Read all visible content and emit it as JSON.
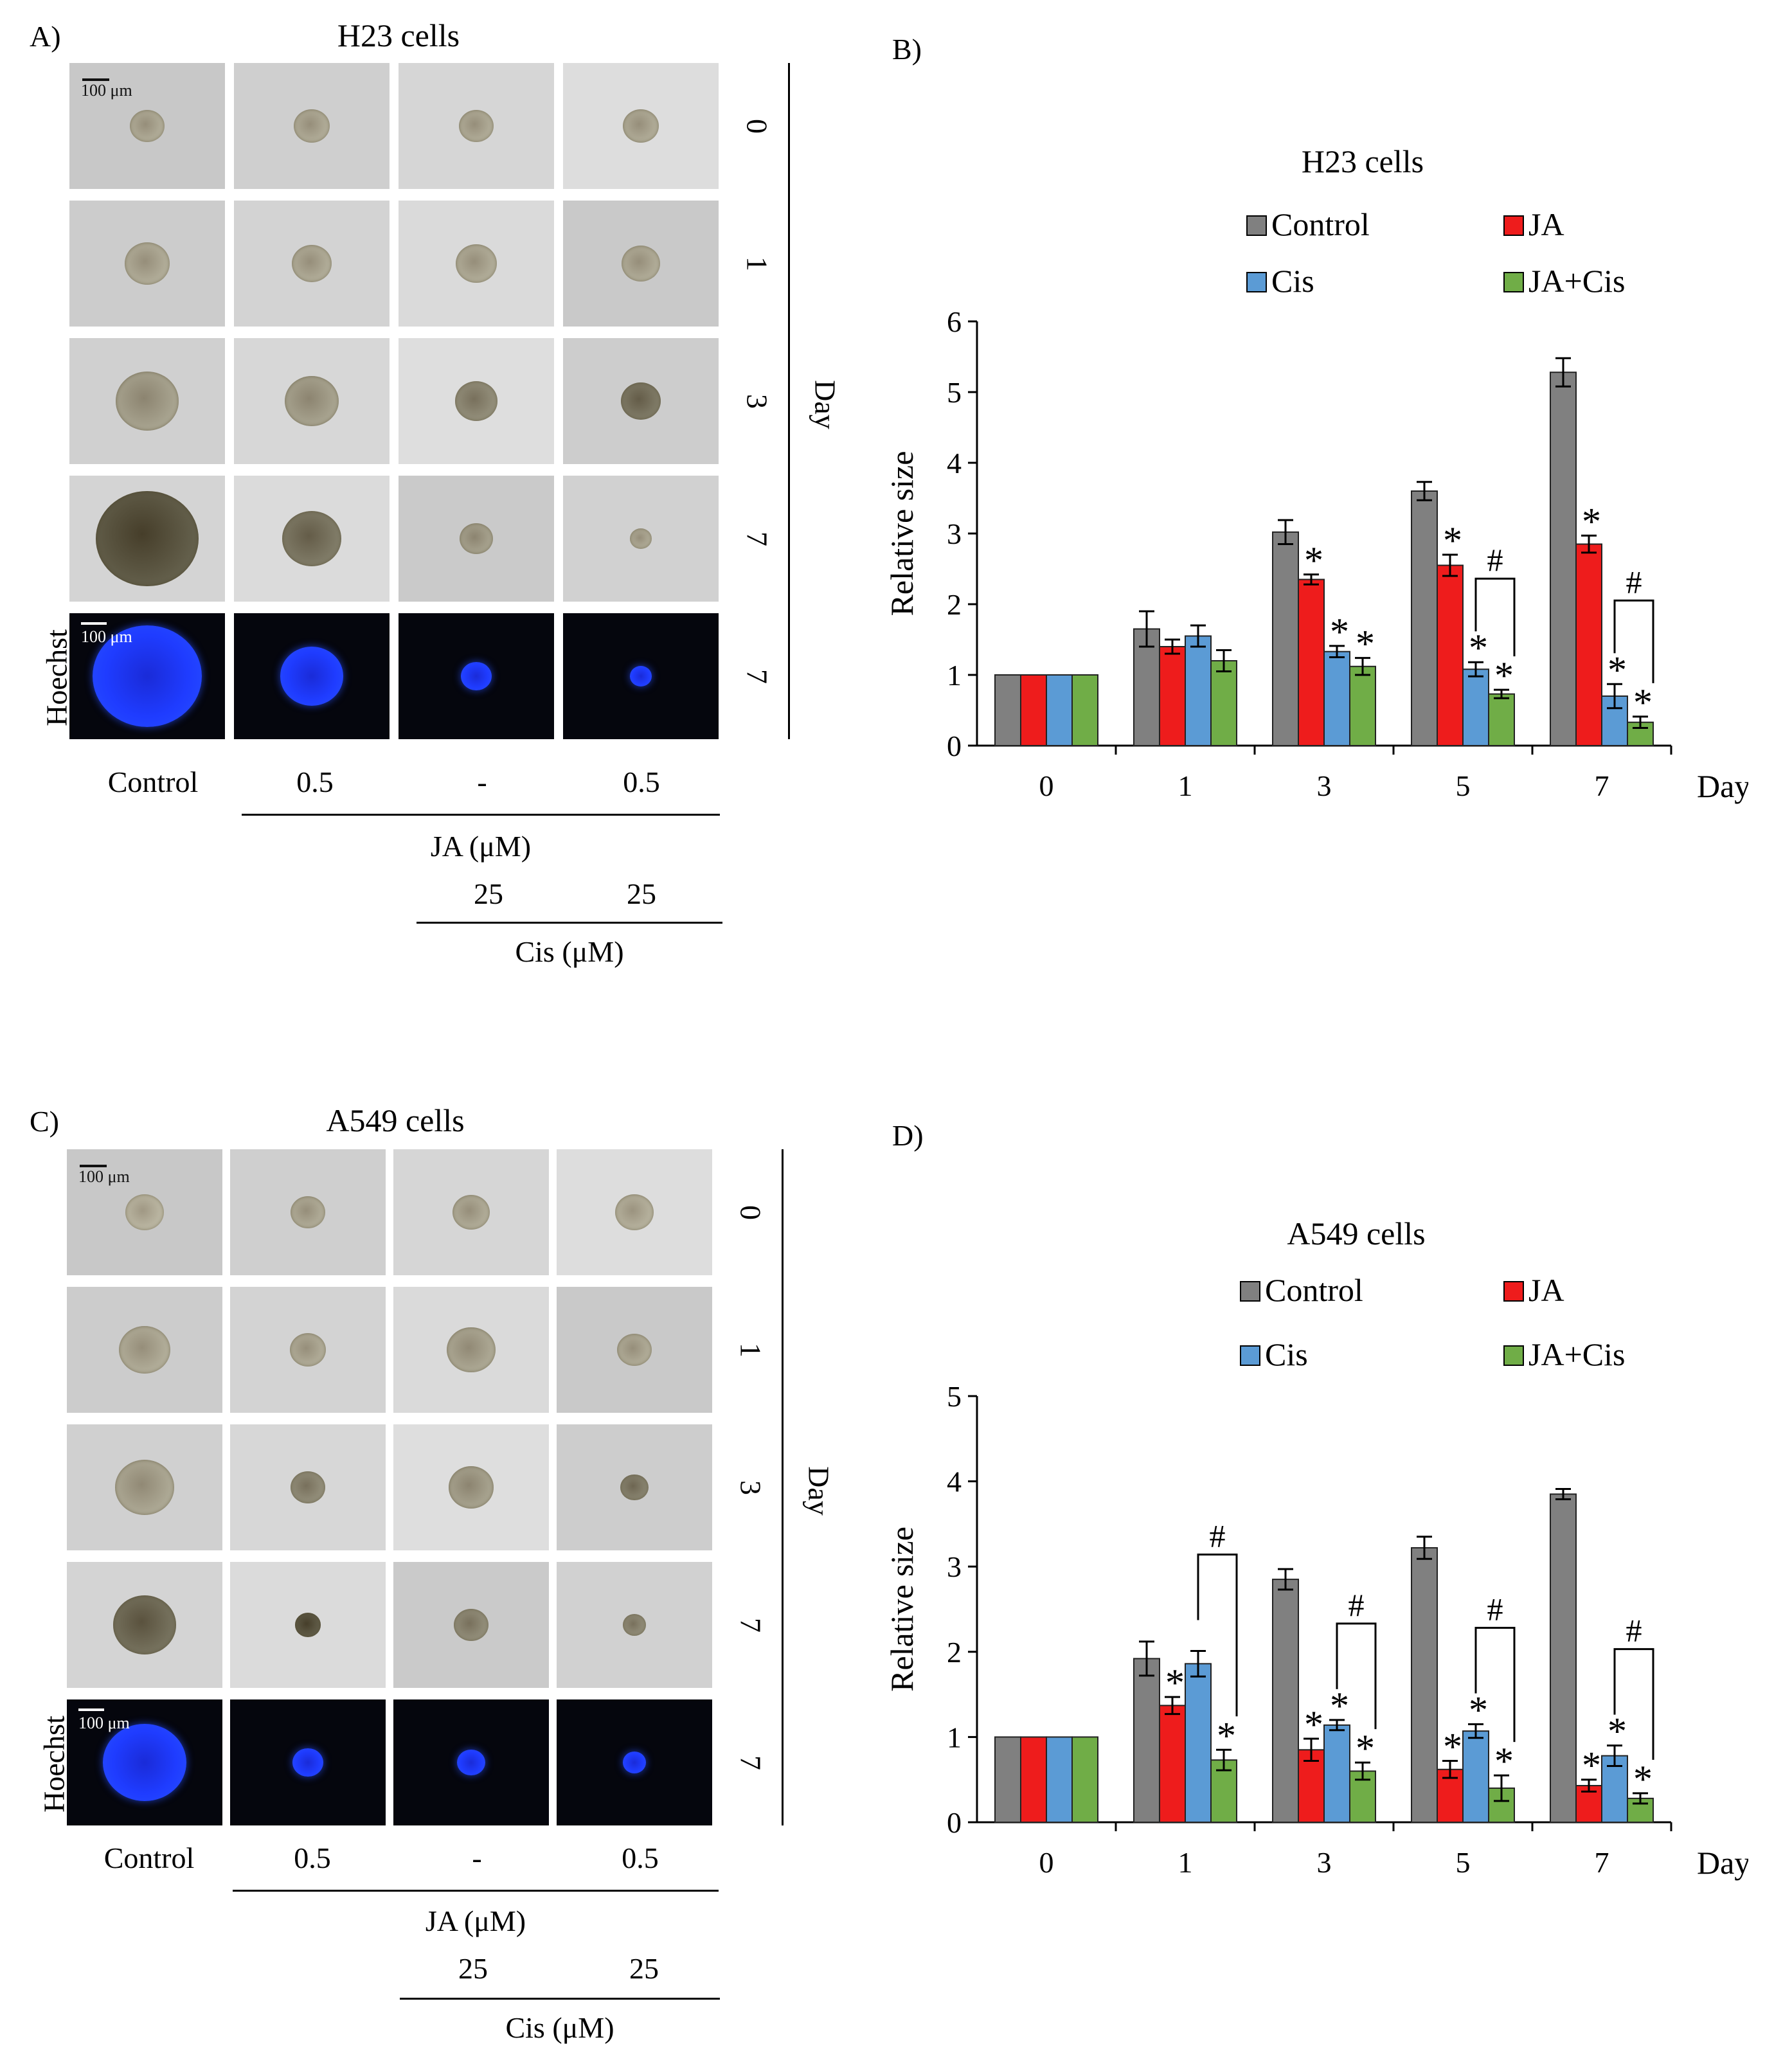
{
  "panels": [
    {
      "id": "A",
      "label": "A)",
      "title": "H23 cells",
      "day_axis_title": "Day",
      "day_labels": [
        "0",
        "1",
        "3",
        "7",
        "7"
      ],
      "hoechst_label": "Hoechst",
      "scale_label": "100 μm",
      "treatments": [
        "Control",
        "0.5",
        "-",
        "0.5"
      ],
      "ja_label": "JA (μM)",
      "cis_values": [
        "25",
        "25"
      ],
      "cis_label": "Cis (μM)"
    },
    {
      "id": "C",
      "label": "C)",
      "title": "A549 cells",
      "day_axis_title": "Day",
      "day_labels": [
        "0",
        "1",
        "3",
        "7",
        "7"
      ],
      "hoechst_label": "Hoechst",
      "scale_label": "100 μm",
      "treatments": [
        "Control",
        "0.5",
        "-",
        "0.5"
      ],
      "ja_label": "JA (μM)",
      "cis_values": [
        "25",
        "25"
      ],
      "cis_label": "Cis (μM)"
    }
  ],
  "colors": {
    "control": "#808080",
    "ja": "#ee1c1c",
    "cis": "#5b9bd5",
    "ja_cis": "#70ad47",
    "hoechst_bg": "#05060d",
    "hoechst_blue": "#1f3cff"
  },
  "chart_data": [
    {
      "panel_label": "B)",
      "type": "bar",
      "title": "H23 cells",
      "xlabel": "Day",
      "ylabel": "Relative size",
      "ylim": [
        0,
        6
      ],
      "yticks": [
        "0",
        "1",
        "2",
        "3",
        "4",
        "5",
        "6"
      ],
      "categories": [
        "0",
        "1",
        "3",
        "5",
        "7"
      ],
      "legend_position": "top",
      "series": [
        {
          "name": "Control",
          "values": [
            1.0,
            1.65,
            3.02,
            3.6,
            5.28
          ],
          "errors": [
            0,
            0.25,
            0.17,
            0.13,
            0.2
          ],
          "stars": [
            false,
            false,
            false,
            false,
            false
          ]
        },
        {
          "name": "JA",
          "values": [
            1.0,
            1.4,
            2.35,
            2.55,
            2.85
          ],
          "errors": [
            0,
            0.1,
            0.07,
            0.15,
            0.12
          ],
          "stars": [
            false,
            false,
            true,
            true,
            true
          ]
        },
        {
          "name": "Cis",
          "values": [
            1.0,
            1.55,
            1.33,
            1.08,
            0.7
          ],
          "errors": [
            0,
            0.15,
            0.08,
            0.1,
            0.17
          ],
          "stars": [
            false,
            false,
            true,
            true,
            true
          ]
        },
        {
          "name": "JA+Cis",
          "values": [
            1.0,
            1.2,
            1.12,
            0.73,
            0.33
          ],
          "errors": [
            0,
            0.15,
            0.12,
            0.06,
            0.08
          ],
          "stars": [
            false,
            false,
            true,
            true,
            true
          ]
        }
      ],
      "star_symbol": "*",
      "significance_brackets": [
        {
          "category": "5",
          "between": [
            "Cis",
            "JA+Cis"
          ],
          "symbol": "#"
        },
        {
          "category": "7",
          "between": [
            "Cis",
            "JA+Cis"
          ],
          "symbol": "#"
        }
      ]
    },
    {
      "panel_label": "D)",
      "type": "bar",
      "title": "A549 cells",
      "xlabel": "Day",
      "ylabel": "Relative size",
      "ylim": [
        0,
        5
      ],
      "yticks": [
        "0",
        "1",
        "2",
        "3",
        "4",
        "5"
      ],
      "categories": [
        "0",
        "1",
        "3",
        "5",
        "7"
      ],
      "legend_position": "top",
      "series": [
        {
          "name": "Control",
          "values": [
            1.0,
            1.92,
            2.85,
            3.22,
            3.85
          ],
          "errors": [
            0,
            0.2,
            0.12,
            0.13,
            0.06
          ],
          "stars": [
            false,
            false,
            false,
            false,
            false
          ]
        },
        {
          "name": "JA",
          "values": [
            1.0,
            1.37,
            0.85,
            0.62,
            0.43
          ],
          "errors": [
            0,
            0.1,
            0.13,
            0.1,
            0.07
          ],
          "stars": [
            false,
            true,
            true,
            true,
            true
          ]
        },
        {
          "name": "Cis",
          "values": [
            1.0,
            1.86,
            1.14,
            1.07,
            0.78
          ],
          "errors": [
            0,
            0.15,
            0.06,
            0.08,
            0.12
          ],
          "stars": [
            false,
            false,
            true,
            true,
            true
          ]
        },
        {
          "name": "JA+Cis",
          "values": [
            1.0,
            0.73,
            0.6,
            0.4,
            0.28
          ],
          "errors": [
            0,
            0.12,
            0.1,
            0.15,
            0.06
          ],
          "stars": [
            false,
            true,
            true,
            true,
            true
          ]
        }
      ],
      "star_symbol": "*",
      "significance_brackets": [
        {
          "category": "1",
          "between": [
            "Cis",
            "JA+Cis"
          ],
          "symbol": "#"
        },
        {
          "category": "3",
          "between": [
            "Cis",
            "JA+Cis"
          ],
          "symbol": "#"
        },
        {
          "category": "5",
          "between": [
            "Cis",
            "JA+Cis"
          ],
          "symbol": "#"
        },
        {
          "category": "7",
          "between": [
            "Cis",
            "JA+Cis"
          ],
          "symbol": "#"
        }
      ]
    }
  ]
}
